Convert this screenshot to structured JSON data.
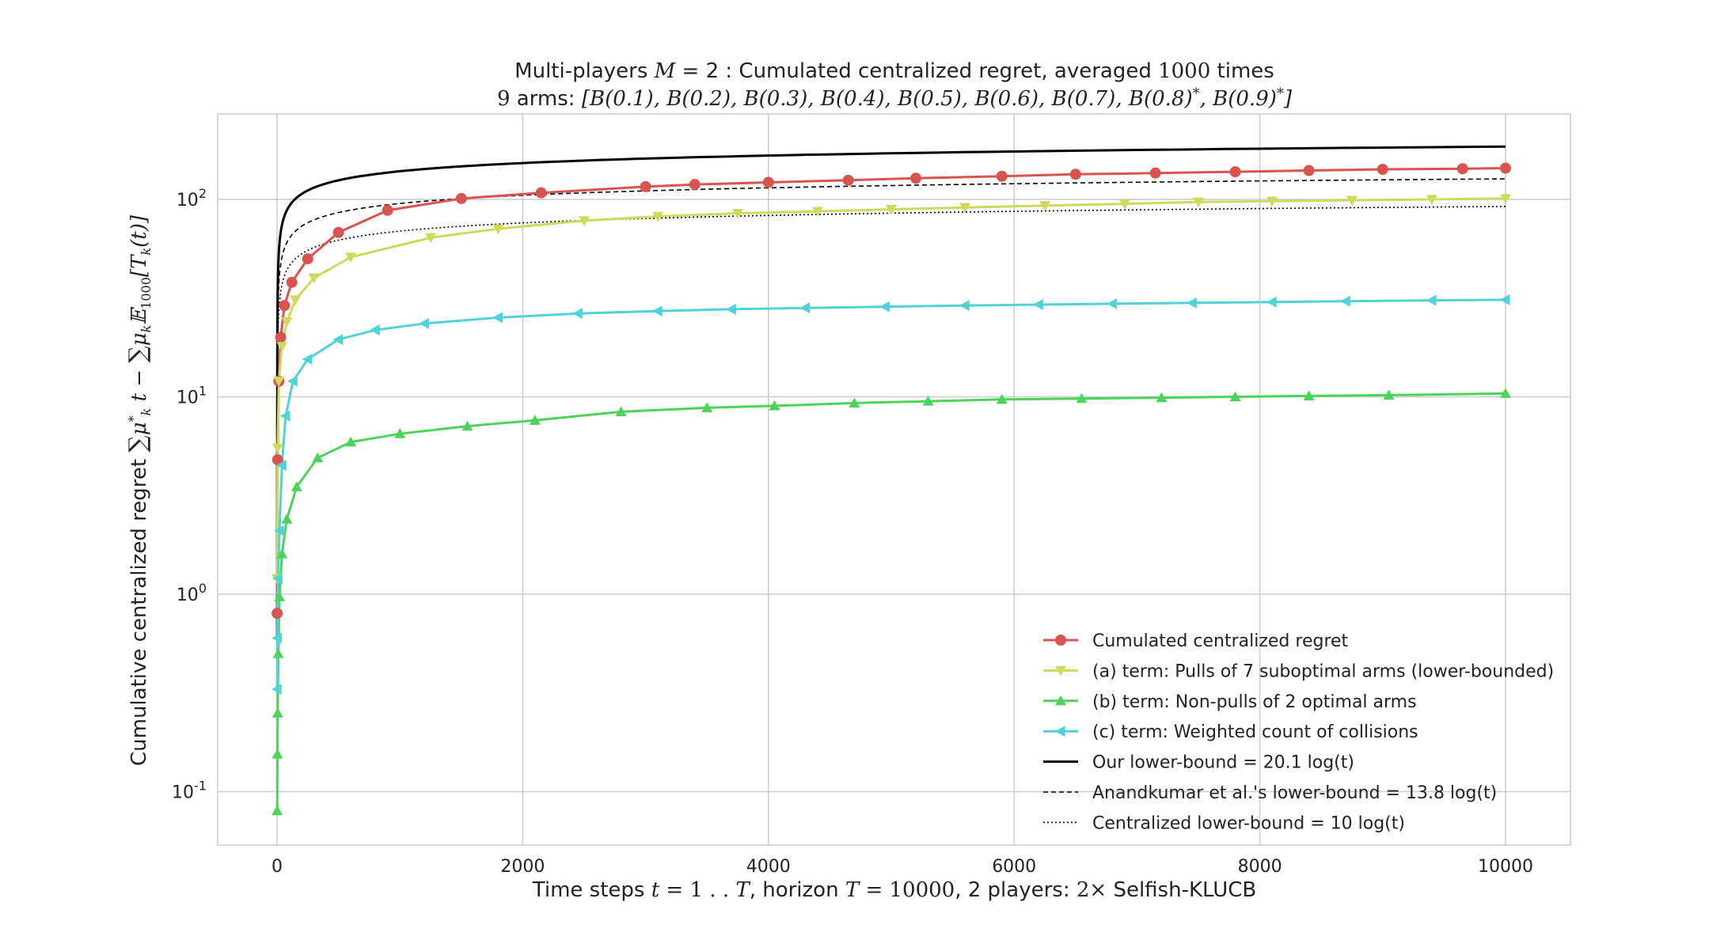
{
  "chart_data": {
    "type": "line",
    "title": "Multi-players M = 2 : Cumulated centralized regret, averaged 1000 times",
    "subtitle": "9 arms: [B(0.1), B(0.2), B(0.3), B(0.4), B(0.5), B(0.6), B(0.7), B(0.8)*, B(0.9)*]",
    "xlabel": "Time steps t = 1 . . T, horizon T = 10000, 2 players: 2× Selfish-KLUCB",
    "ylabel": "Cumulative centralized regret ∑ₖ₌₁² μₖ* t − ∑ₖ₌₁⁹ μₖ 𝔼₁₀₀₀[Tₖ(t)]",
    "xlim": [
      -500,
      10500
    ],
    "ylim_log10": [
      -1.3,
      1.45
    ],
    "yscale": "log",
    "grid": true,
    "legend_position": "lower-right",
    "x_ticks": [
      "0",
      "2000",
      "4000",
      "6000",
      "8000",
      "10000"
    ],
    "y_ticks": [
      {
        "base": "10",
        "exp": "-1"
      },
      {
        "base": "10",
        "exp": "0"
      },
      {
        "base": "10",
        "exp": "1"
      },
      {
        "base": "10",
        "exp": "2"
      }
    ],
    "series": [
      {
        "name": "Cumulated centralized regret",
        "color": "#d9534f",
        "marker": "circle",
        "style": "solid",
        "x": [
          1,
          5,
          15,
          30,
          60,
          120,
          250,
          500,
          900,
          1500,
          2150,
          3000,
          3400,
          4000,
          4650,
          5200,
          5900,
          6500,
          7150,
          7800,
          8400,
          9000,
          9650,
          10000
        ],
        "y": [
          0.8,
          4.8,
          12,
          20,
          29,
          38,
          50,
          68,
          88,
          101,
          108,
          116,
          119,
          122,
          125,
          128,
          131,
          134,
          136,
          138,
          140,
          142,
          143,
          144
        ]
      },
      {
        "name": "(a) term: Pulls of 7 suboptimal arms (lower-bounded)",
        "color": "#cfd95a",
        "marker": "triangle-down",
        "style": "solid",
        "x": [
          1,
          5,
          15,
          40,
          80,
          150,
          300,
          600,
          1250,
          1800,
          2500,
          3100,
          3750,
          4400,
          5000,
          5600,
          6250,
          6900,
          7500,
          8100,
          8750,
          9400,
          10000
        ],
        "y": [
          1.2,
          5.5,
          12,
          18,
          24,
          31,
          40,
          51,
          64,
          71,
          78,
          82,
          85,
          87,
          89,
          91,
          93,
          95,
          97,
          98,
          99,
          100,
          101
        ]
      },
      {
        "name": "(b) term: Non-pulls of 2 optimal arms",
        "color": "#4cd45a",
        "marker": "triangle-up",
        "style": "solid",
        "x": [
          1,
          3,
          5,
          10,
          20,
          40,
          80,
          160,
          330,
          600,
          1000,
          1550,
          2100,
          2800,
          3500,
          4050,
          4700,
          5300,
          5900,
          6550,
          7200,
          7800,
          8400,
          9050,
          10000
        ],
        "y": [
          0.08,
          0.155,
          0.25,
          0.5,
          0.97,
          1.6,
          2.4,
          3.5,
          4.9,
          5.9,
          6.5,
          7.1,
          7.6,
          8.4,
          8.8,
          9.0,
          9.3,
          9.5,
          9.7,
          9.8,
          9.9,
          10.0,
          10.1,
          10.2,
          10.4
        ]
      },
      {
        "name": "(c) term: Weighted count of collisions",
        "color": "#4fd3d8",
        "marker": "triangle-left",
        "style": "solid",
        "x": [
          1,
          3,
          8,
          20,
          40,
          70,
          130,
          250,
          500,
          800,
          1200,
          1800,
          2450,
          3100,
          3700,
          4300,
          4950,
          5600,
          6200,
          6800,
          7450,
          8100,
          8700,
          9400,
          10000
        ],
        "y": [
          0.33,
          0.6,
          1.2,
          2.1,
          4.5,
          8.0,
          12.0,
          15.5,
          19.5,
          21.8,
          23.5,
          25.2,
          26.4,
          27.2,
          27.8,
          28.2,
          28.6,
          29.0,
          29.3,
          29.6,
          29.9,
          30.2,
          30.5,
          30.8,
          31.0
        ]
      }
    ],
    "lower_bounds": [
      {
        "name": "Our lower-bound = 20.1 log(t)",
        "coef": 20.1,
        "color": "#000000",
        "style": "solid"
      },
      {
        "name": "Anandkumar et al.'s lower-bound = 13.8 log(t)",
        "coef": 13.8,
        "color": "#000000",
        "style": "dashed"
      },
      {
        "name": "Centralized lower-bound = 10 log(t)",
        "coef": 10,
        "color": "#000000",
        "style": "dotted"
      }
    ]
  }
}
